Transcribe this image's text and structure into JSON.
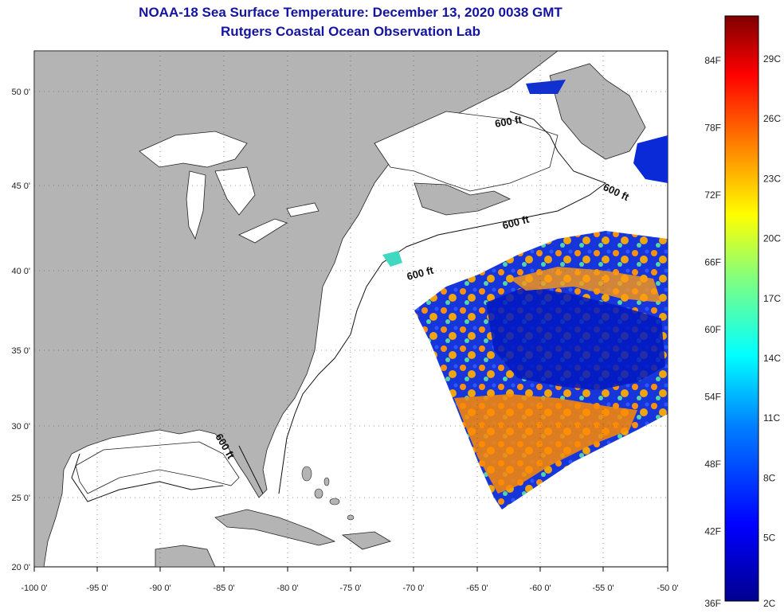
{
  "header": {
    "title": "NOAA-18 Sea Surface Temperature:  December 13, 2020 0038 GMT",
    "subtitle": "Rutgers Coastal Ocean Observation Lab"
  },
  "map": {
    "lon_range": [
      -100,
      -50
    ],
    "lat_range": [
      20,
      52
    ],
    "lon_ticks": [
      "-100 0'",
      "-95 0'",
      "-90 0'",
      "-85 0'",
      "-80 0'",
      "-75 0'",
      "-70 0'",
      "-65 0'",
      "-60 0'",
      "-55 0'",
      "-50 0'"
    ],
    "lat_ticks": [
      "20 0'",
      "25 0'",
      "30 0'",
      "35 0'",
      "40 0'",
      "45 0'",
      "50 0'"
    ],
    "contour_labels": [
      "600 ft",
      "600 ft",
      "600 ft",
      "600 ft",
      "600 ft"
    ],
    "land_color": "#b4b4b4",
    "ocean_color": "#ffffff"
  },
  "colorbar": {
    "fahrenheit_labels": [
      "84F",
      "78F",
      "72F",
      "66F",
      "60F",
      "54F",
      "48F",
      "42F",
      "36F"
    ],
    "celsius_labels": [
      "29C",
      "26C",
      "23C",
      "20C",
      "17C",
      "14C",
      "11C",
      "8C",
      "5C",
      "2C"
    ],
    "colors": [
      "#7f0000",
      "#ff0000",
      "#ff8000",
      "#ffff00",
      "#80ff80",
      "#00ffff",
      "#0080ff",
      "#0000ff",
      "#00008f"
    ]
  }
}
